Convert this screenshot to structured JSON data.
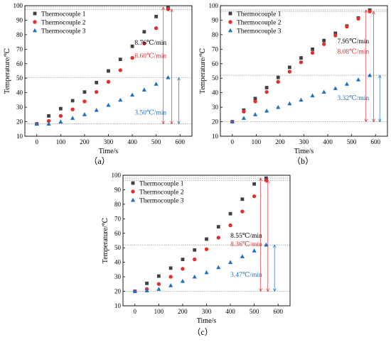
{
  "chart_data": [
    {
      "type": "scatter",
      "panel_label": "（a）",
      "xlabel": "Time/s",
      "ylabel": "Temperature/℃",
      "xlim": [
        -50,
        650
      ],
      "ylim": [
        10,
        100
      ],
      "xticks": [
        0,
        100,
        200,
        300,
        400,
        500,
        600
      ],
      "yticks": [
        10,
        20,
        30,
        40,
        50,
        60,
        70,
        80,
        90,
        100
      ],
      "legend": "top-left",
      "series": [
        {
          "name": "Thermocouple 1",
          "marker": "square",
          "color": "#404040",
          "x": [
            0,
            50,
            100,
            150,
            200,
            250,
            300,
            350,
            400,
            450,
            500,
            550
          ],
          "y": [
            18.5,
            24,
            29,
            34.5,
            40.5,
            47,
            55,
            63,
            72,
            82,
            92.5,
            99
          ]
        },
        {
          "name": "Thermocouple 2",
          "marker": "circle",
          "color": "#e03030",
          "x": [
            0,
            50,
            100,
            150,
            200,
            250,
            300,
            350,
            400,
            450,
            500,
            550
          ],
          "y": [
            18.5,
            20.5,
            24,
            28.5,
            34,
            40.5,
            47.5,
            55.5,
            64,
            74,
            84.5,
            97.5
          ]
        },
        {
          "name": "Thermocouple 3",
          "marker": "triangle",
          "color": "#1f6fc5",
          "x": [
            0,
            50,
            100,
            150,
            200,
            250,
            300,
            350,
            400,
            450,
            500,
            550
          ],
          "y": [
            18.5,
            18.5,
            20,
            22.5,
            25,
            28,
            31.5,
            35,
            38.5,
            42,
            46,
            50.5
          ]
        }
      ],
      "rate_labels": [
        {
          "text": "8.76℃/min",
          "color": "#000000",
          "x": 410,
          "y": 73
        },
        {
          "text": "8.60℃/min",
          "color": "#e03030",
          "x": 410,
          "y": 64
        },
        {
          "text": "3.50℃/min",
          "color": "#1f6fc5",
          "x": 410,
          "y": 25
        }
      ],
      "ref_lines_y": [
        99,
        97.5,
        50.5,
        18.5
      ],
      "arrows": [
        {
          "x": 530,
          "y_from": 18.5,
          "y_to": 99,
          "color": "#e03030"
        },
        {
          "x": 565,
          "y_from": 18.5,
          "y_to": 97.5,
          "color": "#e03030"
        },
        {
          "x": 595,
          "y_from": 18.5,
          "y_to": 50.5,
          "color": "#1f6fc5"
        }
      ]
    },
    {
      "type": "scatter",
      "panel_label": "（b）",
      "xlabel": "Time/s",
      "ylabel": "Temperature/℃",
      "xlim": [
        -50,
        650
      ],
      "ylim": [
        10,
        100
      ],
      "xticks": [
        0,
        100,
        200,
        300,
        400,
        500,
        600
      ],
      "yticks": [
        10,
        20,
        30,
        40,
        50,
        60,
        70,
        80,
        90,
        100
      ],
      "legend": "top-left",
      "series": [
        {
          "name": "Thermocouple 1",
          "marker": "square",
          "color": "#404040",
          "x": [
            0,
            48,
            96,
            144,
            192,
            240,
            288,
            336,
            384,
            432,
            480,
            528,
            576
          ],
          "y": [
            20,
            28,
            36,
            43.5,
            50.5,
            57.5,
            64,
            70,
            76,
            81,
            86,
            91.5,
            97
          ]
        },
        {
          "name": "Thermocouple 2",
          "marker": "circle",
          "color": "#e03030",
          "x": [
            0,
            48,
            96,
            144,
            192,
            240,
            288,
            336,
            384,
            432,
            480,
            528,
            576
          ],
          "y": [
            20,
            27,
            34,
            40.5,
            47.5,
            54.5,
            61,
            67.5,
            73.5,
            79.5,
            85.5,
            91,
            96
          ]
        },
        {
          "name": "Thermocouple 3",
          "marker": "triangle",
          "color": "#1f6fc5",
          "x": [
            0,
            48,
            96,
            144,
            192,
            240,
            288,
            336,
            384,
            432,
            480,
            528,
            576
          ],
          "y": [
            20,
            22.5,
            25,
            27.5,
            30,
            32.5,
            35,
            38,
            40.5,
            43,
            46,
            49,
            52
          ]
        }
      ],
      "rate_labels": [
        {
          "text": "7.95℃/min",
          "color": "#000000",
          "x": 440,
          "y": 74
        },
        {
          "text": "8.08℃/min",
          "color": "#e03030",
          "x": 440,
          "y": 67
        },
        {
          "text": "3.32℃/min",
          "color": "#1f6fc5",
          "x": 440,
          "y": 35
        }
      ],
      "ref_lines_y": [
        97,
        96,
        52,
        20
      ],
      "arrows": [
        {
          "x": 560,
          "y_from": 20,
          "y_to": 97,
          "color": "#e03030"
        },
        {
          "x": 592,
          "y_from": 20,
          "y_to": 96,
          "color": "#e03030"
        },
        {
          "x": 618,
          "y_from": 20,
          "y_to": 52,
          "color": "#1f6fc5"
        }
      ]
    },
    {
      "type": "scatter",
      "panel_label": "（c）",
      "xlabel": "Time/s",
      "ylabel": "Temperature/℃",
      "xlim": [
        -50,
        650
      ],
      "ylim": [
        10,
        100
      ],
      "xticks": [
        0,
        100,
        200,
        300,
        400,
        500,
        600
      ],
      "yticks": [
        10,
        20,
        30,
        40,
        50,
        60,
        70,
        80,
        90,
        100
      ],
      "legend": "top-left",
      "series": [
        {
          "name": "Thermocouple 1",
          "marker": "square",
          "color": "#404040",
          "x": [
            0,
            50,
            100,
            150,
            200,
            250,
            300,
            350,
            400,
            450,
            500,
            550
          ],
          "y": [
            20,
            25.5,
            30.5,
            36,
            42,
            48.5,
            56,
            64.5,
            73.5,
            83.5,
            94,
            98
          ]
        },
        {
          "name": "Thermocouple 2",
          "marker": "circle",
          "color": "#e03030",
          "x": [
            0,
            50,
            100,
            150,
            200,
            250,
            300,
            350,
            400,
            450,
            500,
            550
          ],
          "y": [
            20,
            21.5,
            25,
            30,
            35.5,
            42,
            49,
            57,
            65.5,
            75,
            85.5,
            96.5
          ]
        },
        {
          "name": "Thermocouple 3",
          "marker": "triangle",
          "color": "#1f6fc5",
          "x": [
            0,
            50,
            100,
            150,
            200,
            250,
            300,
            350,
            400,
            450,
            500,
            550
          ],
          "y": [
            20,
            20.5,
            21.5,
            24,
            27,
            30,
            33,
            36.5,
            40,
            44,
            48,
            52
          ]
        }
      ],
      "rate_labels": [
        {
          "text": "8.55℃/min",
          "color": "#000000",
          "x": 400,
          "y": 57
        },
        {
          "text": "8.36℃/min",
          "color": "#e03030",
          "x": 400,
          "y": 51
        },
        {
          "text": "3.47℃/min",
          "color": "#1f6fc5",
          "x": 400,
          "y": 30
        }
      ],
      "ref_lines_y": [
        98,
        96.5,
        52,
        20
      ],
      "arrows": [
        {
          "x": 527,
          "y_from": 20,
          "y_to": 98,
          "color": "#e03030"
        },
        {
          "x": 557,
          "y_from": 20,
          "y_to": 96.5,
          "color": "#e03030"
        },
        {
          "x": 585,
          "y_from": 20,
          "y_to": 52,
          "color": "#1f6fc5"
        }
      ]
    }
  ]
}
